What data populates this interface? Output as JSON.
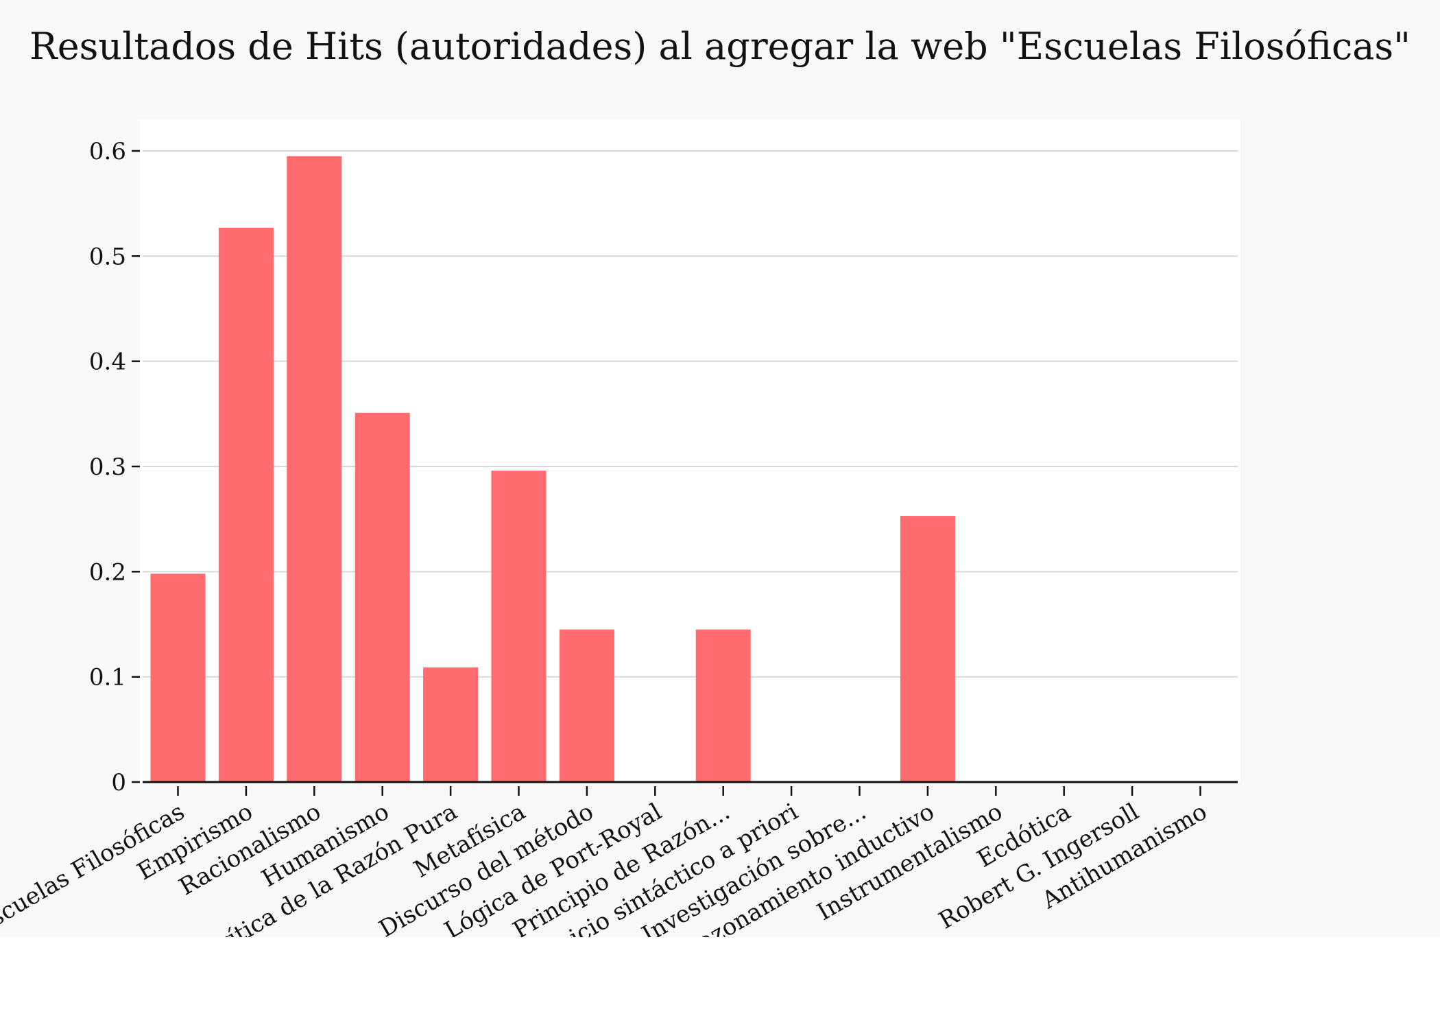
{
  "chart_data": {
    "type": "bar",
    "title": "Resultados de Hits (autoridades) al agregar la web \"Escuelas Filosóficas\"",
    "xlabel": "",
    "ylabel": "",
    "categories": [
      "Escuelas Filosóficas",
      "Empirismo",
      "Racionalismo",
      "Humanismo",
      "Crítica de la Razón Pura",
      "Metafísica",
      "Discurso del método",
      "Lógica de Port-Royal",
      "Principio de Razón...",
      "Juicio sintáctico a priori",
      "Investigación sobre...",
      "Razonamiento inductivo",
      "Instrumentalismo",
      "Ecdótica",
      "Robert G. Ingersoll",
      "Antihumanismo"
    ],
    "values": [
      0.198,
      0.527,
      0.595,
      0.351,
      0.109,
      0.296,
      0.145,
      0,
      0.145,
      0,
      0,
      0.253,
      0,
      0,
      0,
      0
    ],
    "ylim": [
      0,
      0.63
    ],
    "yticks": [
      0,
      0.1,
      0.2,
      0.3,
      0.4,
      0.5,
      0.6
    ],
    "ytick_labels": [
      "0",
      "0.1",
      "0.2",
      "0.3",
      "0.4",
      "0.5",
      "0.6"
    ],
    "grid": true,
    "bar_color": "#ff6b6e",
    "grid_color": "#d8d8d8",
    "plot_background": "#ffffff",
    "figure_background": "#f8f8f8"
  }
}
